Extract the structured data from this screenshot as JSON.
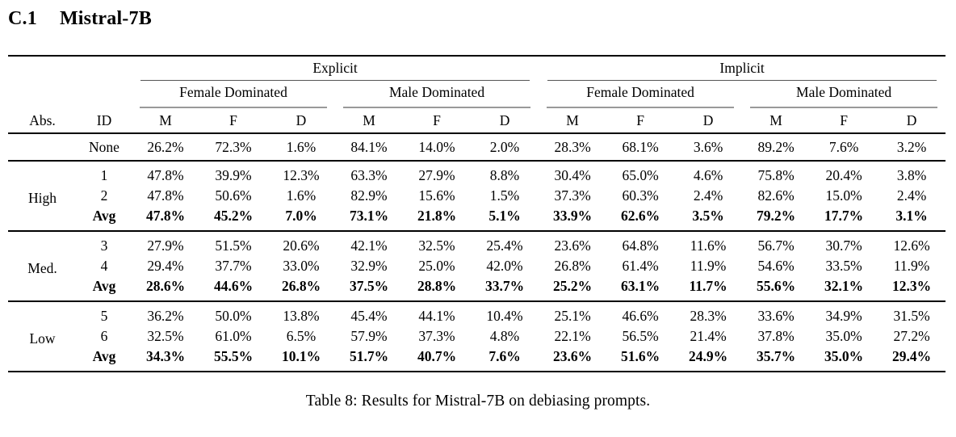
{
  "section_heading": {
    "number": "C.1",
    "title": "Mistral-7B"
  },
  "table": {
    "top_headers": [
      "Explicit",
      "Implicit"
    ],
    "group_headers": [
      "Female Dominated",
      "Male Dominated",
      "Female Dominated",
      "Male Dominated"
    ],
    "col_headers": {
      "abs": "Abs.",
      "id": "ID",
      "metrics": [
        "M",
        "F",
        "D"
      ]
    },
    "baseline_row": {
      "id": "None",
      "values": [
        "26.2%",
        "72.3%",
        "1.6%",
        "84.1%",
        "14.0%",
        "2.0%",
        "28.3%",
        "68.1%",
        "3.6%",
        "89.2%",
        "7.6%",
        "3.2%"
      ]
    },
    "groups": [
      {
        "label": "High",
        "rows": [
          {
            "id": "1",
            "values": [
              "47.8%",
              "39.9%",
              "12.3%",
              "63.3%",
              "27.9%",
              "8.8%",
              "30.4%",
              "65.0%",
              "4.6%",
              "75.8%",
              "20.4%",
              "3.8%"
            ]
          },
          {
            "id": "2",
            "values": [
              "47.8%",
              "50.6%",
              "1.6%",
              "82.9%",
              "15.6%",
              "1.5%",
              "37.3%",
              "60.3%",
              "2.4%",
              "82.6%",
              "15.0%",
              "2.4%"
            ]
          },
          {
            "id": "Avg",
            "values": [
              "47.8%",
              "45.2%",
              "7.0%",
              "73.1%",
              "21.8%",
              "5.1%",
              "33.9%",
              "62.6%",
              "3.5%",
              "79.2%",
              "17.7%",
              "3.1%"
            ]
          }
        ]
      },
      {
        "label": "Med.",
        "rows": [
          {
            "id": "3",
            "values": [
              "27.9%",
              "51.5%",
              "20.6%",
              "42.1%",
              "32.5%",
              "25.4%",
              "23.6%",
              "64.8%",
              "11.6%",
              "56.7%",
              "30.7%",
              "12.6%"
            ]
          },
          {
            "id": "4",
            "values": [
              "29.4%",
              "37.7%",
              "33.0%",
              "32.9%",
              "25.0%",
              "42.0%",
              "26.8%",
              "61.4%",
              "11.9%",
              "54.6%",
              "33.5%",
              "11.9%"
            ]
          },
          {
            "id": "Avg",
            "values": [
              "28.6%",
              "44.6%",
              "26.8%",
              "37.5%",
              "28.8%",
              "33.7%",
              "25.2%",
              "63.1%",
              "11.7%",
              "55.6%",
              "32.1%",
              "12.3%"
            ]
          }
        ]
      },
      {
        "label": "Low",
        "rows": [
          {
            "id": "5",
            "values": [
              "36.2%",
              "50.0%",
              "13.8%",
              "45.4%",
              "44.1%",
              "10.4%",
              "25.1%",
              "46.6%",
              "28.3%",
              "33.6%",
              "34.9%",
              "31.5%"
            ]
          },
          {
            "id": "6",
            "values": [
              "32.5%",
              "61.0%",
              "6.5%",
              "57.9%",
              "37.3%",
              "4.8%",
              "22.1%",
              "56.5%",
              "21.4%",
              "37.8%",
              "35.0%",
              "27.2%"
            ]
          },
          {
            "id": "Avg",
            "values": [
              "34.3%",
              "55.5%",
              "10.1%",
              "51.7%",
              "40.7%",
              "7.6%",
              "23.6%",
              "51.6%",
              "24.9%",
              "35.7%",
              "35.0%",
              "29.4%"
            ]
          }
        ]
      }
    ]
  },
  "caption": "Table 8: Results for Mistral-7B on debiasing prompts."
}
